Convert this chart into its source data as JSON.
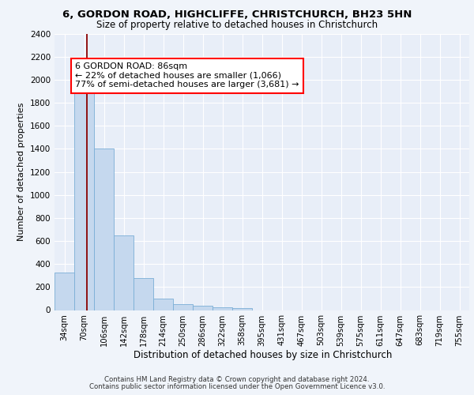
{
  "title1": "6, GORDON ROAD, HIGHCLIFFE, CHRISTCHURCH, BH23 5HN",
  "title2": "Size of property relative to detached houses in Christchurch",
  "xlabel": "Distribution of detached houses by size in Christchurch",
  "ylabel": "Number of detached properties",
  "categories": [
    "34sqm",
    "70sqm",
    "106sqm",
    "142sqm",
    "178sqm",
    "214sqm",
    "250sqm",
    "286sqm",
    "322sqm",
    "358sqm",
    "395sqm",
    "431sqm",
    "467sqm",
    "503sqm",
    "539sqm",
    "575sqm",
    "611sqm",
    "647sqm",
    "683sqm",
    "719sqm",
    "755sqm"
  ],
  "values": [
    325,
    1975,
    1400,
    650,
    275,
    100,
    50,
    35,
    25,
    20,
    0,
    0,
    0,
    0,
    0,
    0,
    0,
    0,
    0,
    0,
    0
  ],
  "bar_color": "#c5d8ee",
  "bar_edge_color": "#7aaed6",
  "red_line_x": 1.13,
  "annotation_line1": "6 GORDON ROAD: 86sqm",
  "annotation_line2": "← 22% of detached houses are smaller (1,066)",
  "annotation_line3": "77% of semi-detached houses are larger (3,681) →",
  "ylim": [
    0,
    2400
  ],
  "yticks": [
    0,
    200,
    400,
    600,
    800,
    1000,
    1200,
    1400,
    1600,
    1800,
    2000,
    2200,
    2400
  ],
  "footnote1": "Contains HM Land Registry data © Crown copyright and database right 2024.",
  "footnote2": "Contains public sector information licensed under the Open Government Licence v3.0.",
  "bg_color": "#f0f4fa",
  "plot_bg_color": "#e8eef8"
}
